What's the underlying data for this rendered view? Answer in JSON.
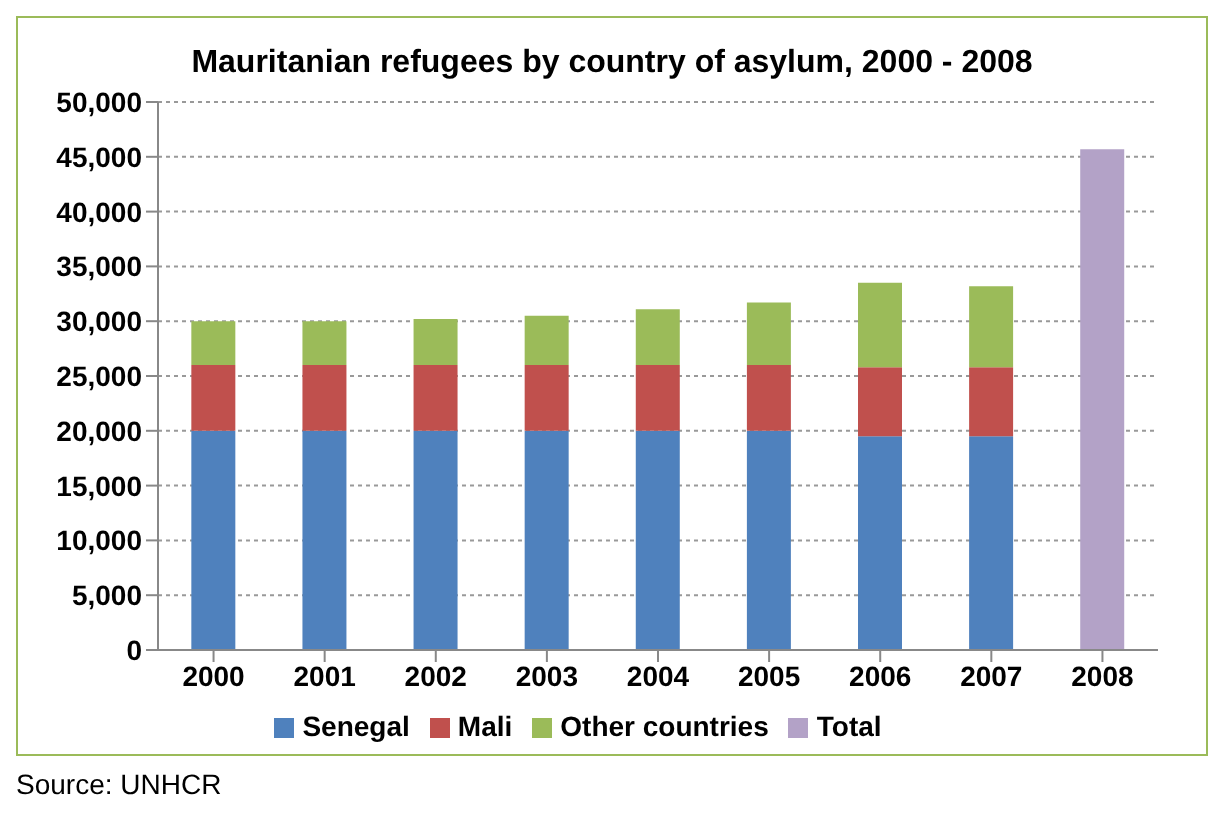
{
  "chart_data": {
    "type": "bar",
    "title": "Mauritanian refugees by country of asylum, 2000 - 2008",
    "categories": [
      "2000",
      "2001",
      "2002",
      "2003",
      "2004",
      "2005",
      "2006",
      "2007",
      "2008"
    ],
    "stacked": true,
    "series": [
      {
        "name": "Senegal",
        "color": "#4f81bd",
        "values": [
          20000,
          20000,
          20000,
          20000,
          20000,
          20000,
          19500,
          19500,
          null
        ]
      },
      {
        "name": "Mali",
        "color": "#c0504d",
        "values": [
          6000,
          6000,
          6000,
          6000,
          6000,
          6000,
          6300,
          6300,
          null
        ]
      },
      {
        "name": "Other countries",
        "color": "#9bbb59",
        "values": [
          4000,
          4000,
          4200,
          4500,
          5100,
          5700,
          7700,
          7400,
          null
        ]
      },
      {
        "name": "Total",
        "color": "#b3a2c7",
        "values": [
          null,
          null,
          null,
          null,
          null,
          null,
          null,
          null,
          45700
        ]
      }
    ],
    "ylim": [
      0,
      50000
    ],
    "yticks": [
      0,
      {
        "value": 5000,
        "label": "5,000"
      },
      {
        "value": 10000,
        "label": "10,000"
      },
      {
        "value": 15000,
        "label": "15,000"
      },
      {
        "value": 20000,
        "label": "20,000"
      },
      {
        "value": 25000,
        "label": "25,000"
      },
      {
        "value": 30000,
        "label": "30,000"
      },
      {
        "value": 35000,
        "label": "35,000"
      },
      {
        "value": 40000,
        "label": "40,000"
      },
      {
        "value": 45000,
        "label": "45,000"
      },
      {
        "value": 50000,
        "label": "50,000"
      }
    ],
    "grid": "y",
    "legend": "bottom",
    "annotations": [
      "Source: UNHCR"
    ]
  }
}
